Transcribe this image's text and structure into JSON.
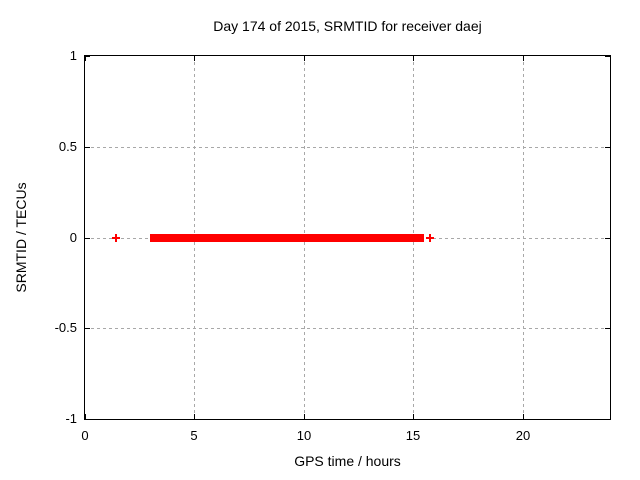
{
  "chart_data": {
    "type": "scatter",
    "title": "Day 174 of 2015, SRMTID for receiver daej",
    "xlabel": "GPS time / hours",
    "ylabel": "SRMTID / TECUs",
    "xlim": [
      0,
      24
    ],
    "ylim": [
      -1,
      1
    ],
    "xticks": [
      0,
      5,
      10,
      15,
      20
    ],
    "xtick_labels": [
      "0",
      "5",
      "10",
      "15",
      "20"
    ],
    "yticks": [
      1,
      0.5,
      0,
      -0.5,
      -1
    ],
    "ytick_labels": [
      "1",
      "0.5",
      "0",
      "-0.5",
      "-1"
    ],
    "grid": true,
    "grid_x": [
      5,
      10,
      15,
      20
    ],
    "grid_y": [
      0.5,
      0,
      -0.5
    ],
    "legend": "none",
    "marker": "plus",
    "colors": {
      "marker": "#ff0000",
      "axis": "#000000",
      "grid": "#a8a8a8",
      "text": "#000000",
      "background": "#ffffff"
    },
    "series": [
      {
        "name": "SRMTID",
        "y_value": 0,
        "dense_segments_x": [
          [
            2.97,
            15.51
          ]
        ],
        "isolated_points_x": [
          1.4,
          15.76
        ],
        "note": "SRMTID stays at ~0 TECUs; dense plus markers from ~3.0 h to ~15.5 h, lone points near 1.4 h and 15.8 h"
      }
    ]
  }
}
